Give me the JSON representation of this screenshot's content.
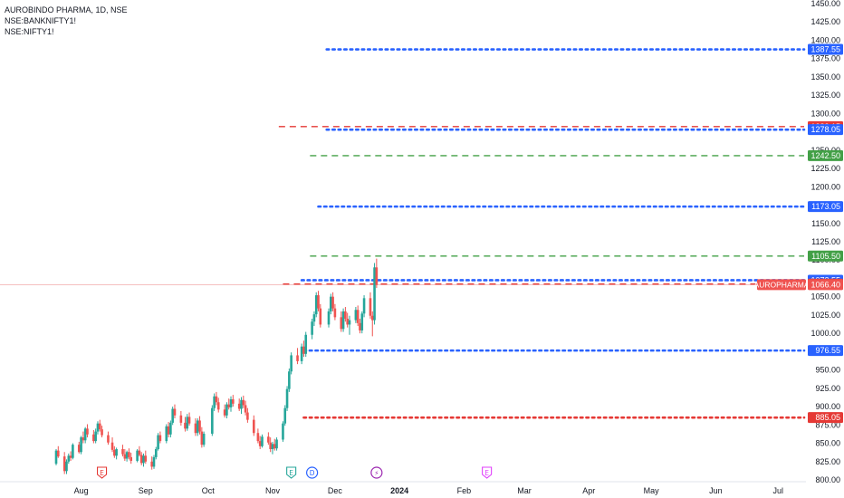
{
  "legend": {
    "title": "AUROBINDO PHARMA, 1D, NSE",
    "compare_1": "NSE:BANKNIFTY1!",
    "compare_2": "NSE:NIFTY1!"
  },
  "chart_data": {
    "type": "candlestick",
    "symbol": "AUROPHARMA",
    "exchange": "NSE",
    "interval": "1D",
    "ylim": [
      800,
      1450
    ],
    "y_ticks": [
      800,
      825,
      850,
      875,
      900,
      925,
      950,
      975,
      1000,
      1025,
      1050,
      1075,
      1100,
      1125,
      1150,
      1175,
      1200,
      1225,
      1250,
      1275,
      1300,
      1325,
      1350,
      1375,
      1400,
      1425,
      1450
    ],
    "x_ticks": [
      "Aug",
      "Sep",
      "Oct",
      "Nov",
      "Dec",
      "2024",
      "Feb",
      "Mar",
      "Apr",
      "May",
      "Jun",
      "Jul"
    ],
    "x_range": [
      "2023-07-20",
      "2024-07-10"
    ],
    "x_tick_dates": [
      "2023-08-01",
      "2023-09-01",
      "2023-10-01",
      "2023-11-01",
      "2023-12-01",
      "2024-01-01",
      "2024-02-01",
      "2024-03-01",
      "2024-04-01",
      "2024-05-01",
      "2024-06-01",
      "2024-07-01"
    ],
    "current_price": 1066.4,
    "current_label": "AUROPHARMA",
    "colors": {
      "up": "#26a69a",
      "down": "#ef5350",
      "blue": "#2962ff",
      "green": "#43a047",
      "red": "#e53935",
      "event_e_red": "#e53935",
      "event_e_green": "#26a69a",
      "event_d": "#2962ff",
      "event_split": "#9c27b0",
      "event_e_pink": "#e040fb"
    },
    "levels": [
      {
        "price": 1387.55,
        "label": "1387.55",
        "style": "dotted",
        "color": "blue",
        "start": "2023-11-27"
      },
      {
        "price": 1282.15,
        "label": "1282.15",
        "style": "dashed",
        "color": "red",
        "start": "2023-11-04"
      },
      {
        "price": 1278.05,
        "label": "1278.05",
        "style": "dotted",
        "color": "blue",
        "start": "2023-11-27"
      },
      {
        "price": 1242.5,
        "label": "1242.50",
        "style": "dashed",
        "color": "green",
        "start": "2023-11-19"
      },
      {
        "price": 1173.05,
        "label": "1173.05",
        "style": "dotted",
        "color": "blue",
        "start": "2023-11-23"
      },
      {
        "price": 1105.5,
        "label": "1105.50",
        "style": "dashed",
        "color": "green",
        "start": "2023-11-19"
      },
      {
        "price": 1072.55,
        "label": "1072.55",
        "style": "dotted",
        "color": "blue",
        "start": "2023-11-15"
      },
      {
        "price": 1067.25,
        "label": "1067.25",
        "style": "dashed",
        "color": "red",
        "start": "2023-11-06"
      },
      {
        "price": 976.55,
        "label": "976.55",
        "style": "dotted",
        "color": "blue",
        "start": "2023-11-16"
      },
      {
        "price": 885.05,
        "label": "885.05",
        "style": "dotted",
        "color": "red",
        "start": "2023-11-16"
      }
    ],
    "events": [
      {
        "date": "2023-08-11",
        "letter": "E",
        "color": "event_e_red"
      },
      {
        "date": "2023-11-10",
        "letter": "E",
        "color": "event_e_green"
      },
      {
        "date": "2023-11-20",
        "letter": "D",
        "color": "event_d"
      },
      {
        "date": "2023-12-21",
        "letter": "⚡",
        "color": "event_split"
      },
      {
        "date": "2024-02-12",
        "letter": "E",
        "color": "event_e_pink"
      }
    ],
    "candles": [
      [
        "2023-07-20",
        822,
        842,
        820,
        840
      ],
      [
        "2023-07-21",
        840,
        846,
        830,
        832
      ],
      [
        "2023-07-24",
        832,
        838,
        808,
        812
      ],
      [
        "2023-07-25",
        812,
        828,
        808,
        825
      ],
      [
        "2023-07-26",
        825,
        836,
        822,
        833
      ],
      [
        "2023-07-27",
        833,
        839,
        826,
        830
      ],
      [
        "2023-07-28",
        830,
        850,
        828,
        848
      ],
      [
        "2023-07-31",
        848,
        852,
        836,
        838
      ],
      [
        "2023-08-01",
        838,
        860,
        835,
        858
      ],
      [
        "2023-08-02",
        858,
        866,
        850,
        854
      ],
      [
        "2023-08-03",
        854,
        872,
        850,
        870
      ],
      [
        "2023-08-04",
        870,
        876,
        858,
        862
      ],
      [
        "2023-08-07",
        862,
        868,
        850,
        853
      ],
      [
        "2023-08-08",
        853,
        870,
        850,
        866
      ],
      [
        "2023-08-09",
        866,
        880,
        862,
        877
      ],
      [
        "2023-08-10",
        877,
        882,
        866,
        869
      ],
      [
        "2023-08-11",
        869,
        874,
        858,
        861
      ],
      [
        "2023-08-14",
        861,
        866,
        848,
        851
      ],
      [
        "2023-08-16",
        851,
        858,
        838,
        841
      ],
      [
        "2023-08-17",
        841,
        846,
        830,
        833
      ],
      [
        "2023-08-18",
        833,
        844,
        828,
        842
      ],
      [
        "2023-08-21",
        842,
        848,
        832,
        835
      ],
      [
        "2023-08-22",
        835,
        842,
        826,
        829
      ],
      [
        "2023-08-23",
        829,
        840,
        825,
        838
      ],
      [
        "2023-08-24",
        838,
        843,
        828,
        831
      ],
      [
        "2023-08-25",
        831,
        837,
        822,
        826
      ],
      [
        "2023-08-28",
        826,
        842,
        824,
        840
      ],
      [
        "2023-08-29",
        840,
        846,
        832,
        834
      ],
      [
        "2023-08-30",
        834,
        838,
        820,
        823
      ],
      [
        "2023-08-31",
        823,
        836,
        818,
        833
      ],
      [
        "2023-09-01",
        833,
        840,
        822,
        825
      ],
      [
        "2023-09-04",
        825,
        832,
        814,
        818
      ],
      [
        "2023-09-05",
        818,
        834,
        815,
        831
      ],
      [
        "2023-09-06",
        831,
        845,
        828,
        842
      ],
      [
        "2023-09-07",
        842,
        864,
        840,
        861
      ],
      [
        "2023-09-08",
        861,
        866,
        850,
        853
      ],
      [
        "2023-09-11",
        853,
        876,
        850,
        873
      ],
      [
        "2023-09-12",
        873,
        879,
        858,
        862
      ],
      [
        "2023-09-13",
        862,
        881,
        858,
        878
      ],
      [
        "2023-09-14",
        878,
        900,
        875,
        897
      ],
      [
        "2023-09-15",
        897,
        903,
        884,
        888
      ],
      [
        "2023-09-18",
        888,
        894,
        874,
        878
      ],
      [
        "2023-09-20",
        878,
        886,
        866,
        870
      ],
      [
        "2023-09-21",
        870,
        890,
        867,
        886
      ],
      [
        "2023-09-22",
        886,
        892,
        874,
        877
      ],
      [
        "2023-09-25",
        877,
        884,
        860,
        864
      ],
      [
        "2023-09-26",
        864,
        884,
        860,
        881
      ],
      [
        "2023-09-27",
        881,
        887,
        862,
        866
      ],
      [
        "2023-09-28",
        866,
        872,
        844,
        848
      ],
      [
        "2023-09-29",
        848,
        866,
        845,
        863
      ],
      [
        "2023-10-03",
        863,
        902,
        860,
        898
      ],
      [
        "2023-10-04",
        898,
        918,
        894,
        914
      ],
      [
        "2023-10-05",
        914,
        920,
        902,
        906
      ],
      [
        "2023-10-06",
        906,
        912,
        892,
        896
      ],
      [
        "2023-10-09",
        896,
        903,
        885,
        888
      ],
      [
        "2023-10-10",
        888,
        906,
        884,
        903
      ],
      [
        "2023-10-11",
        903,
        911,
        896,
        899
      ],
      [
        "2023-10-12",
        899,
        914,
        893,
        910
      ],
      [
        "2023-10-13",
        910,
        916,
        900,
        904
      ],
      [
        "2023-10-16",
        904,
        911,
        894,
        897
      ],
      [
        "2023-10-17",
        897,
        913,
        890,
        909
      ],
      [
        "2023-10-18",
        909,
        915,
        898,
        902
      ],
      [
        "2023-10-19",
        902,
        908,
        888,
        892
      ],
      [
        "2023-10-20",
        892,
        898,
        878,
        882
      ],
      [
        "2023-10-23",
        882,
        888,
        860,
        864
      ],
      [
        "2023-10-25",
        864,
        870,
        850,
        853
      ],
      [
        "2023-10-26",
        853,
        860,
        842,
        846
      ],
      [
        "2023-10-27",
        846,
        862,
        844,
        859
      ],
      [
        "2023-10-30",
        859,
        865,
        848,
        851
      ],
      [
        "2023-10-31",
        851,
        858,
        838,
        842
      ],
      [
        "2023-11-01",
        842,
        852,
        835,
        849
      ],
      [
        "2023-11-02",
        849,
        856,
        840,
        843
      ],
      [
        "2023-11-03",
        843,
        858,
        840,
        855
      ],
      [
        "2023-11-06",
        855,
        880,
        852,
        877
      ],
      [
        "2023-11-07",
        877,
        902,
        874,
        898
      ],
      [
        "2023-11-08",
        898,
        928,
        894,
        924
      ],
      [
        "2023-11-09",
        924,
        952,
        920,
        948
      ],
      [
        "2023-11-10",
        948,
        974,
        944,
        970
      ],
      [
        "2023-11-13",
        970,
        980,
        958,
        962
      ],
      [
        "2023-11-15",
        962,
        986,
        958,
        982
      ],
      [
        "2023-11-16",
        982,
        990,
        968,
        972
      ],
      [
        "2023-11-17",
        972,
        1002,
        968,
        998
      ],
      [
        "2023-11-20",
        998,
        1020,
        992,
        1016
      ],
      [
        "2023-11-21",
        1016,
        1030,
        1010,
        1026
      ],
      [
        "2023-11-22",
        1026,
        1056,
        1022,
        1052
      ],
      [
        "2023-11-23",
        1052,
        1058,
        1030,
        1034
      ],
      [
        "2023-11-24",
        1034,
        1040,
        1008,
        1012
      ],
      [
        "2023-11-28",
        1012,
        1034,
        1008,
        1030
      ],
      [
        "2023-11-29",
        1030,
        1054,
        1026,
        1050
      ],
      [
        "2023-11-30",
        1050,
        1056,
        1030,
        1034
      ],
      [
        "2023-12-01",
        1034,
        1040,
        1018,
        1022
      ],
      [
        "2023-12-04",
        1022,
        1030,
        1002,
        1006
      ],
      [
        "2023-12-05",
        1006,
        1034,
        1002,
        1030
      ],
      [
        "2023-12-06",
        1030,
        1036,
        1016,
        1020
      ],
      [
        "2023-12-07",
        1020,
        1028,
        1008,
        1012
      ],
      [
        "2023-12-08",
        1012,
        1024,
        998,
        1018
      ],
      [
        "2023-12-11",
        1018,
        1036,
        1014,
        1032
      ],
      [
        "2023-12-12",
        1032,
        1038,
        1010,
        1014
      ],
      [
        "2023-12-13",
        1014,
        1020,
        1000,
        1004
      ],
      [
        "2023-12-14",
        1004,
        1030,
        1000,
        1027
      ],
      [
        "2023-12-15",
        1027,
        1052,
        1022,
        1048
      ],
      [
        "2023-12-18",
        1048,
        1056,
        1020,
        1024
      ],
      [
        "2023-12-19",
        1024,
        1030,
        996,
        1018
      ],
      [
        "2023-12-20",
        1018,
        1096,
        1012,
        1090
      ],
      [
        "2023-12-21",
        1090,
        1102,
        1062,
        1066
      ]
    ]
  }
}
